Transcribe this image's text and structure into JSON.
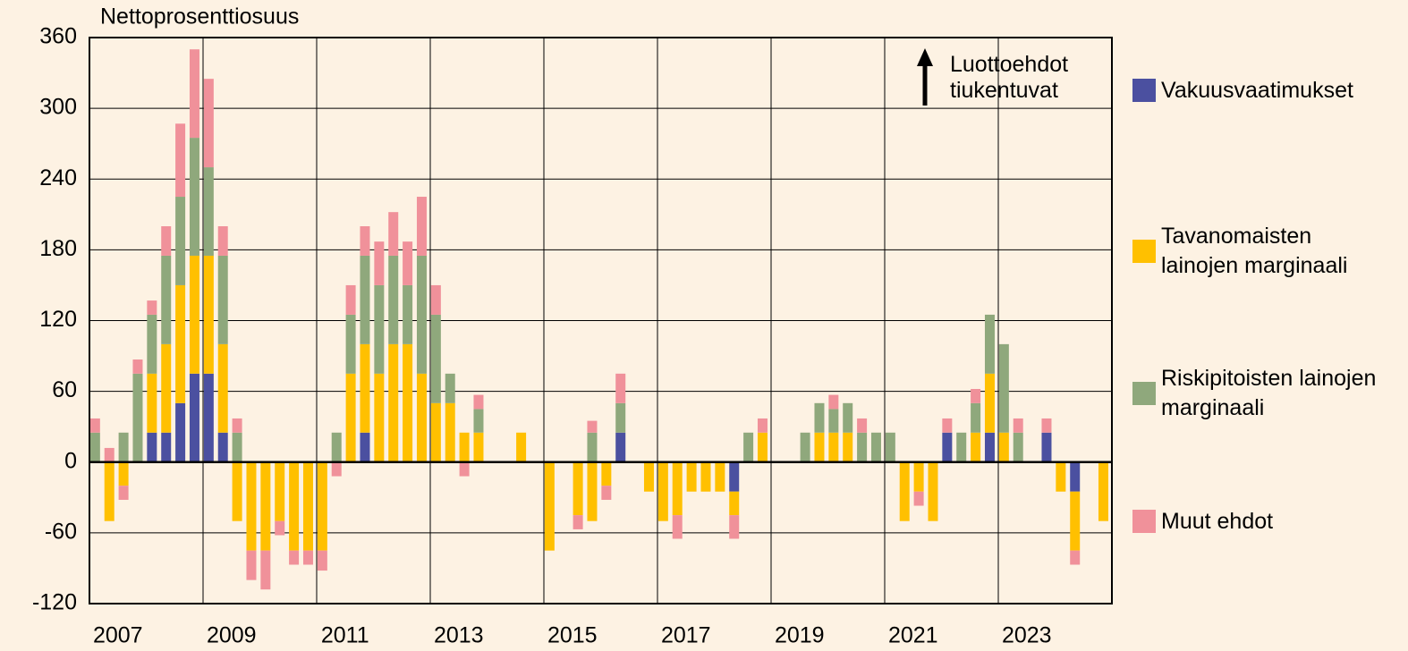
{
  "chart_data": {
    "type": "stacked-bar",
    "y_label": "Nettoprosenttiosuus",
    "annotation": "Luottoehdot tiukentuvat",
    "categories": [
      "2007",
      null,
      null,
      null,
      null,
      null,
      null,
      null,
      "2009",
      null,
      null,
      null,
      null,
      null,
      null,
      null,
      "2011",
      null,
      null,
      null,
      null,
      null,
      null,
      null,
      "2013",
      null,
      null,
      null,
      null,
      null,
      null,
      null,
      "2015",
      null,
      null,
      null,
      null,
      null,
      null,
      null,
      "2017",
      null,
      null,
      null,
      null,
      null,
      null,
      null,
      "2019",
      null,
      null,
      null,
      null,
      null,
      null,
      null,
      "2021",
      null,
      null,
      null,
      null,
      null,
      null,
      null,
      "2023",
      null,
      null,
      null,
      null,
      null,
      null,
      null
    ],
    "series": [
      {
        "name": "Vakuusvaatimukset",
        "color": "#4b50a0",
        "values": [
          0,
          0,
          0,
          0,
          25,
          25,
          50,
          75,
          75,
          25,
          0,
          0,
          0,
          0,
          0,
          0,
          0,
          0,
          0,
          25,
          0,
          0,
          0,
          0,
          0,
          0,
          0,
          0,
          0,
          0,
          0,
          0,
          0,
          0,
          0,
          0,
          0,
          25,
          0,
          0,
          0,
          0,
          0,
          0,
          0,
          -25,
          0,
          0,
          0,
          0,
          0,
          0,
          0,
          0,
          0,
          0,
          0,
          0,
          0,
          0,
          25,
          0,
          0,
          25,
          0,
          0,
          0,
          25,
          0,
          -25,
          0,
          0
        ]
      },
      {
        "name": "Tavanomaisten lainojen marginaali",
        "color": "#ffc000",
        "values": [
          0,
          -50,
          -20,
          0,
          50,
          75,
          100,
          100,
          100,
          75,
          -50,
          -75,
          -75,
          -50,
          -75,
          -75,
          -75,
          0,
          75,
          75,
          75,
          100,
          100,
          75,
          50,
          50,
          25,
          25,
          0,
          0,
          25,
          0,
          -75,
          0,
          -45,
          -50,
          -20,
          0,
          0,
          -25,
          -50,
          -45,
          -25,
          -25,
          -25,
          -20,
          0,
          25,
          0,
          0,
          0,
          25,
          25,
          25,
          0,
          0,
          0,
          -50,
          -25,
          -50,
          0,
          0,
          25,
          50,
          25,
          0,
          0,
          0,
          -25,
          -50,
          0,
          -50
        ]
      },
      {
        "name": "Riskipitoisten lainojen marginaali",
        "color": "#8fa87c",
        "values": [
          25,
          0,
          25,
          75,
          50,
          75,
          75,
          100,
          75,
          75,
          25,
          0,
          0,
          0,
          0,
          0,
          0,
          25,
          50,
          75,
          75,
          75,
          50,
          100,
          75,
          25,
          0,
          20,
          0,
          0,
          0,
          0,
          0,
          0,
          0,
          25,
          0,
          25,
          0,
          0,
          0,
          0,
          0,
          0,
          0,
          0,
          25,
          0,
          0,
          0,
          25,
          25,
          20,
          25,
          25,
          25,
          25,
          0,
          0,
          0,
          0,
          25,
          25,
          50,
          75,
          25,
          0,
          0,
          0,
          0,
          0,
          0
        ]
      },
      {
        "name": "Muut ehdot",
        "color": "#f0919a",
        "values": [
          12,
          12,
          -12,
          12,
          12,
          25,
          62,
          75,
          75,
          25,
          12,
          -25,
          -33,
          -12,
          -12,
          -12,
          -17,
          -12,
          25,
          25,
          37,
          37,
          37,
          50,
          25,
          0,
          -12,
          12,
          0,
          0,
          0,
          0,
          0,
          0,
          -12,
          10,
          -12,
          25,
          0,
          0,
          0,
          -20,
          0,
          0,
          0,
          -20,
          0,
          12,
          0,
          0,
          0,
          0,
          12,
          0,
          12,
          0,
          0,
          0,
          -12,
          0,
          12,
          0,
          12,
          0,
          0,
          12,
          0,
          12,
          0,
          -12,
          0,
          0
        ]
      }
    ],
    "ylim": [
      -120,
      360
    ],
    "yticks": [
      -120,
      -60,
      0,
      60,
      120,
      180,
      240,
      300,
      360
    ],
    "grid": true,
    "legend": "right"
  }
}
